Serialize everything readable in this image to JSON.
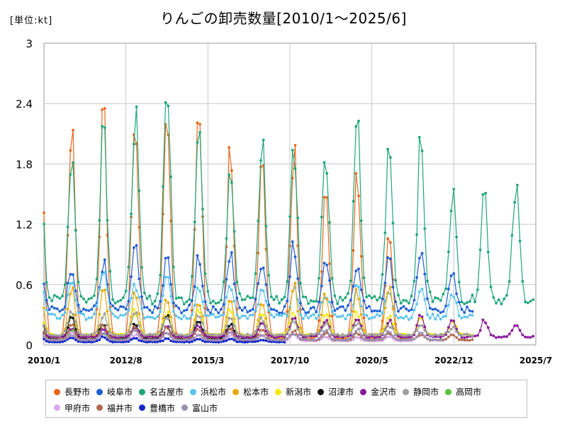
{
  "unit_label": "[単位:kt]",
  "title": "りんごの卸売数量[2010/1～2025/6]",
  "chart_data": {
    "type": "line",
    "y_ticks": [
      "3",
      "2.4",
      "1.8",
      "1.2",
      "0.6",
      "0"
    ],
    "x_ticks": [
      "2010/1",
      "2012/8",
      "2015/3",
      "2017/10",
      "2020/5",
      "2022/12",
      "2025/7"
    ],
    "ylim": [
      0,
      3
    ],
    "xlim": [
      "2010/1",
      "2025/7"
    ],
    "grid": true,
    "legend_position": "bottom",
    "series": [
      {
        "name": "長野市",
        "color": "#e8661c",
        "peak": 2.0,
        "peaks": [
          2.6,
          2.18,
          2.32,
          2.28,
          2.38,
          2.3,
          2.02,
          1.98,
          1.95,
          1.52,
          1.72,
          1.22
        ],
        "base": 0.06,
        "end": 2021.6
      },
      {
        "name": "岐阜市",
        "color": "#1f5fd4",
        "peak": 0.85,
        "peaks": [
          0.88,
          0.8,
          0.82,
          0.96,
          0.86,
          0.9,
          0.92,
          0.86,
          1.0,
          0.88,
          0.84,
          0.86,
          0.98,
          0.68
        ],
        "base": 0.35,
        "end": 2023.5
      },
      {
        "name": "名古屋市",
        "color": "#1fa67a",
        "peak": 1.8,
        "peaks": [
          2.1,
          1.93,
          2.32,
          2.36,
          2.64,
          2.25,
          1.86,
          2.05,
          1.98,
          2.0,
          2.18,
          1.95,
          2.0,
          1.56
        ],
        "base": 0.45,
        "end": 2025.45
      },
      {
        "name": "浜松市",
        "color": "#5bc3ee",
        "peak": 0.55,
        "peaks": [
          0.72,
          0.66,
          0.78,
          0.62,
          0.76,
          0.58,
          0.6,
          0.55,
          0.54,
          0.52,
          0.58,
          0.55,
          0.56,
          0.5
        ],
        "base": 0.28,
        "end": 2023.5
      },
      {
        "name": "松本市",
        "color": "#e8a90c",
        "peak": 0.5,
        "peaks": [
          0.62,
          0.58,
          0.56,
          0.52,
          0.48,
          0.46,
          0.46,
          0.44,
          0.6,
          0.5,
          0.54,
          0.6
        ],
        "base": 0.08,
        "end": 2021.6
      },
      {
        "name": "新潟市",
        "color": "#f2ea14",
        "peak": 0.3,
        "peaks": [
          0.32,
          0.3,
          0.3,
          0.34,
          0.32,
          0.36,
          0.34,
          0.3,
          0.32,
          0.3,
          0.32,
          0.28,
          0.26,
          0.24
        ],
        "base": 0.1,
        "end": 2023.5
      },
      {
        "name": "沼津市",
        "color": "#111111",
        "peak": 0.28,
        "peaks": [
          0.3,
          0.28,
          0.22,
          0.2,
          0.3,
          0.26,
          0.22
        ],
        "base": 0.06,
        "end": 2016.9
      },
      {
        "name": "金沢市",
        "color": "#8a1a9c",
        "peak": 0.2,
        "peaks": [
          0.14,
          0.16,
          0.15,
          0.17,
          0.18,
          0.2,
          0.18,
          0.22,
          0.3,
          0.26,
          0.28,
          0.24,
          0.3,
          0.26,
          0.24,
          0.22
        ],
        "base": 0.08,
        "end": 2025.45
      },
      {
        "name": "静岡市",
        "color": "#9e9e9e",
        "peak": 0.3,
        "peaks": [
          0.3,
          0.34,
          0.3,
          0.32,
          0.28,
          0.3,
          0.28,
          0.26,
          0.24,
          0.22,
          0.22,
          0.2,
          0.2,
          0.18
        ],
        "base": 0.1,
        "end": 2023.5
      },
      {
        "name": "高岡市",
        "color": "#5cc23c",
        "peak": 0.14,
        "peaks": [
          0.16,
          0.14,
          0.12
        ],
        "base": 0.05,
        "end": 2012.6
      },
      {
        "name": "甲府市",
        "color": "#d9a8f0",
        "peak": 0.12,
        "peaks": [
          0.14,
          0.12,
          0.12,
          0.1,
          0.12,
          0.1,
          0.1,
          0.1,
          0.1,
          0.08,
          0.08,
          0.08
        ],
        "base": 0.04,
        "end": 2021.6
      },
      {
        "name": "福井市",
        "color": "#b06a4e",
        "peak": 0.2,
        "peaks": [
          0.22,
          0.2,
          0.2,
          0.18,
          0.18,
          0.16,
          0.16,
          0.16,
          0.14,
          0.12,
          0.12,
          0.12,
          0.1,
          0.1
        ],
        "base": 0.05,
        "end": 2023.5
      },
      {
        "name": "豊橋市",
        "color": "#1428c8",
        "peak": 0.08,
        "peaks": [
          0.08,
          0.08,
          0.08,
          0.07,
          0.06,
          0.06,
          0.06,
          0.05
        ],
        "base": 0.03,
        "end": 2017.6
      },
      {
        "name": "富山市",
        "color": "#9e8fb0",
        "peak": 0.12,
        "peaks": [
          0.12,
          0.1,
          0.12,
          0.14,
          0.12,
          0.1,
          0.12,
          0.1,
          0.12,
          0.14,
          0.16,
          0.14,
          0.12
        ],
        "base": 0.05,
        "end": 2022.6
      }
    ]
  }
}
